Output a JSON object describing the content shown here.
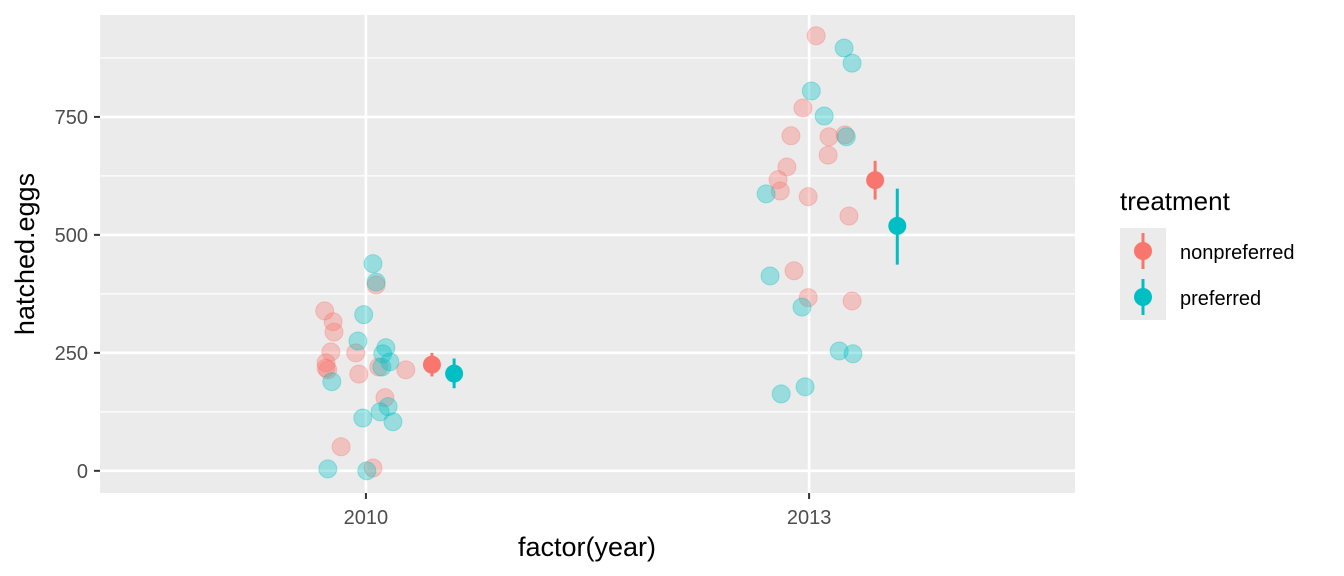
{
  "chart_data": {
    "type": "scatter",
    "xlabel": "factor(year)",
    "ylabel": "hatched.eggs",
    "categories": [
      "2010",
      "2013"
    ],
    "xlim_category_units": [
      0.4,
      2.6
    ],
    "ylim": [
      -47,
      966
    ],
    "yticks": [
      0,
      250,
      500,
      750
    ],
    "y_minor_ticks": [
      125,
      375,
      625,
      875
    ],
    "grid": true,
    "legend": {
      "title": "treatment",
      "placement": "right",
      "entries": [
        "nonpreferred",
        "preferred"
      ]
    },
    "colors": {
      "nonpreferred": "#F8766D",
      "preferred": "#00BFC4",
      "panel": "#EBEBEB",
      "grid": "#FFFFFF"
    },
    "series": [
      {
        "name": "nonpreferred",
        "points": [
          {
            "year": "2010",
            "jitter": -0.093,
            "y": 339
          },
          {
            "year": "2010",
            "jitter": -0.074,
            "y": 316
          },
          {
            "year": "2010",
            "jitter": -0.072,
            "y": 294
          },
          {
            "year": "2010",
            "jitter": -0.079,
            "y": 252
          },
          {
            "year": "2010",
            "jitter": -0.023,
            "y": 250
          },
          {
            "year": "2010",
            "jitter": -0.09,
            "y": 229
          },
          {
            "year": "2010",
            "jitter": -0.09,
            "y": 218
          },
          {
            "year": "2010",
            "jitter": -0.086,
            "y": 214
          },
          {
            "year": "2010",
            "jitter": -0.016,
            "y": 205
          },
          {
            "year": "2010",
            "jitter": 0.029,
            "y": 220
          },
          {
            "year": "2010",
            "jitter": 0.09,
            "y": 214
          },
          {
            "year": "2010",
            "jitter": 0.043,
            "y": 155
          },
          {
            "year": "2010",
            "jitter": -0.056,
            "y": 51
          },
          {
            "year": "2010",
            "jitter": 0.016,
            "y": 6
          },
          {
            "year": "2010",
            "jitter": 0.023,
            "y": 394
          },
          {
            "year": "2013",
            "jitter": 0.016,
            "y": 922
          },
          {
            "year": "2013",
            "jitter": -0.014,
            "y": 769
          },
          {
            "year": "2013",
            "jitter": -0.041,
            "y": 710
          },
          {
            "year": "2013",
            "jitter": 0.045,
            "y": 708
          },
          {
            "year": "2013",
            "jitter": 0.081,
            "y": 712
          },
          {
            "year": "2013",
            "jitter": 0.043,
            "y": 669
          },
          {
            "year": "2013",
            "jitter": -0.05,
            "y": 644
          },
          {
            "year": "2013",
            "jitter": -0.07,
            "y": 617
          },
          {
            "year": "2013",
            "jitter": -0.065,
            "y": 593
          },
          {
            "year": "2013",
            "jitter": -0.002,
            "y": 581
          },
          {
            "year": "2013",
            "jitter": 0.09,
            "y": 540
          },
          {
            "year": "2013",
            "jitter": -0.034,
            "y": 424
          },
          {
            "year": "2013",
            "jitter": -0.002,
            "y": 367
          },
          {
            "year": "2013",
            "jitter": 0.097,
            "y": 360
          }
        ],
        "summary": [
          {
            "year": "2010",
            "dodge": 0.149,
            "mean": 225,
            "low": 200,
            "high": 250
          },
          {
            "year": "2013",
            "dodge": 0.149,
            "mean": 616,
            "low": 575,
            "high": 657
          }
        ]
      },
      {
        "name": "preferred",
        "points": [
          {
            "year": "2010",
            "jitter": 0.016,
            "y": 439
          },
          {
            "year": "2010",
            "jitter": 0.023,
            "y": 400
          },
          {
            "year": "2010",
            "jitter": -0.005,
            "y": 331
          },
          {
            "year": "2010",
            "jitter": -0.018,
            "y": 275
          },
          {
            "year": "2010",
            "jitter": 0.045,
            "y": 261
          },
          {
            "year": "2010",
            "jitter": 0.038,
            "y": 248
          },
          {
            "year": "2010",
            "jitter": 0.054,
            "y": 231
          },
          {
            "year": "2010",
            "jitter": 0.036,
            "y": 220
          },
          {
            "year": "2010",
            "jitter": -0.077,
            "y": 189
          },
          {
            "year": "2010",
            "jitter": -0.007,
            "y": 112
          },
          {
            "year": "2010",
            "jitter": 0.032,
            "y": 125
          },
          {
            "year": "2010",
            "jitter": 0.05,
            "y": 136
          },
          {
            "year": "2010",
            "jitter": 0.061,
            "y": 104
          },
          {
            "year": "2010",
            "jitter": -0.086,
            "y": 4
          },
          {
            "year": "2010",
            "jitter": 0.002,
            "y": 0
          },
          {
            "year": "2013",
            "jitter": 0.079,
            "y": 896
          },
          {
            "year": "2013",
            "jitter": 0.097,
            "y": 864
          },
          {
            "year": "2013",
            "jitter": 0.005,
            "y": 805
          },
          {
            "year": "2013",
            "jitter": 0.034,
            "y": 752
          },
          {
            "year": "2013",
            "jitter": 0.084,
            "y": 708
          },
          {
            "year": "2013",
            "jitter": -0.097,
            "y": 587
          },
          {
            "year": "2013",
            "jitter": -0.088,
            "y": 413
          },
          {
            "year": "2013",
            "jitter": -0.016,
            "y": 347
          },
          {
            "year": "2013",
            "jitter": 0.068,
            "y": 254
          },
          {
            "year": "2013",
            "jitter": 0.099,
            "y": 248
          },
          {
            "year": "2013",
            "jitter": -0.009,
            "y": 178
          },
          {
            "year": "2013",
            "jitter": -0.063,
            "y": 163
          }
        ],
        "summary": [
          {
            "year": "2010",
            "dodge": 0.199,
            "mean": 206,
            "low": 175,
            "high": 238
          },
          {
            "year": "2013",
            "dodge": 0.199,
            "mean": 519,
            "low": 437,
            "high": 598
          }
        ]
      }
    ]
  }
}
